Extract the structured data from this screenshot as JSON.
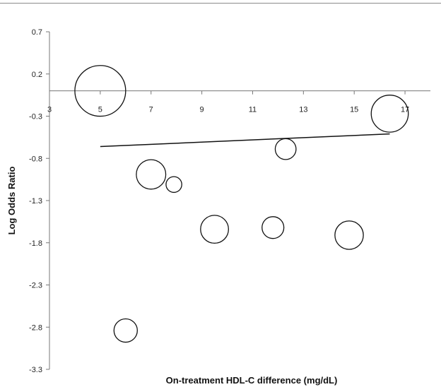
{
  "chart_data": {
    "type": "scatter",
    "subtype": "bubble",
    "title": "",
    "xlabel": "On-treatment HDL-C difference  (mg/dL)",
    "ylabel": "Log Odds Ratio",
    "xlim": [
      3,
      18
    ],
    "ylim": [
      -3.3,
      0.7
    ],
    "x_ticks": [
      3,
      5,
      7,
      9,
      11,
      13,
      15,
      17
    ],
    "y_ticks": [
      0.7,
      0.2,
      -0.3,
      -0.8,
      -1.3,
      -1.8,
      -2.3,
      -2.8,
      -3.3
    ],
    "y_tick_labels": [
      "0.7",
      "0.2",
      "-0.3",
      "-0.8",
      "-1.3",
      "-1.8",
      "-2.3",
      "-2.8",
      "-3.3"
    ],
    "grid": false,
    "legend": "none",
    "bubbles": [
      {
        "x": 5.0,
        "y": 0.0,
        "r": 1.0
      },
      {
        "x": 7.0,
        "y": -0.99,
        "r": 0.58
      },
      {
        "x": 7.9,
        "y": -1.11,
        "r": 0.31
      },
      {
        "x": 9.5,
        "y": -1.64,
        "r": 0.55
      },
      {
        "x": 11.8,
        "y": -1.62,
        "r": 0.43
      },
      {
        "x": 12.3,
        "y": -0.69,
        "r": 0.41
      },
      {
        "x": 14.8,
        "y": -1.71,
        "r": 0.56
      },
      {
        "x": 16.4,
        "y": -0.27,
        "r": 0.73
      },
      {
        "x": 6.0,
        "y": -2.84,
        "r": 0.46
      }
    ],
    "trendline": {
      "x": [
        5.0,
        16.4
      ],
      "y": [
        -0.66,
        -0.51
      ]
    }
  },
  "colors": {
    "bubble_stroke": "#111111",
    "axis": "#777777",
    "text": "#222222"
  }
}
